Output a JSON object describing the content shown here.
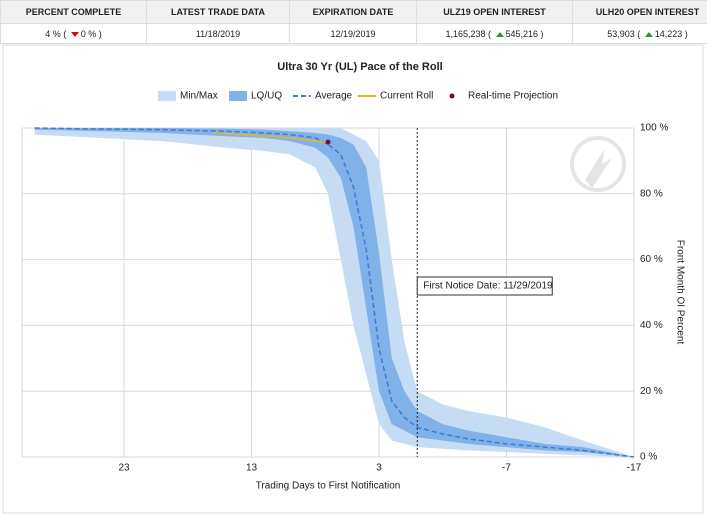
{
  "table": {
    "headers": [
      "PERCENT COMPLETE",
      "LATEST TRADE DATA",
      "EXPIRATION DATE",
      "ULZ19 OPEN INTEREST",
      "ULH20 OPEN INTEREST"
    ],
    "rows": [
      [
        {
          "value": "4 %",
          "change": "0 %",
          "direction": "down"
        },
        "11/18/2019",
        "12/19/2019",
        {
          "value": "1,165,238",
          "change": "545,216",
          "direction": "up"
        },
        {
          "value": "53,903",
          "change": "14,223",
          "direction": "up"
        }
      ]
    ]
  },
  "chart_data": {
    "type": "line",
    "title": "Ultra 30 Yr (UL) Pace of the Roll",
    "x_label": "Trading Days to First Notification",
    "y_label": "Front Month OI Percent",
    "x": [
      30,
      25,
      20,
      15,
      12,
      10,
      8,
      7,
      6,
      5,
      4,
      3,
      2,
      1,
      0,
      -2,
      -4,
      -7,
      -10,
      -13,
      -17
    ],
    "series": [
      {
        "name": "Min/Max",
        "type": "band",
        "color": "#c6dcf4",
        "high": [
          100,
          100,
          100,
          100,
          100,
          100,
          100,
          100,
          100,
          98,
          96,
          90,
          60,
          35,
          20,
          16,
          14,
          12,
          9,
          5,
          0
        ],
        "low": [
          98,
          97,
          96,
          94,
          93,
          92,
          88,
          80,
          60,
          40,
          25,
          10,
          5,
          4,
          3,
          2.5,
          2,
          1.5,
          1,
          0.5,
          0
        ]
      },
      {
        "name": "LQ/UQ",
        "type": "band",
        "color": "#80b1e8",
        "high": [
          100,
          100,
          100,
          99.8,
          99.5,
          99,
          98.5,
          98,
          97,
          95,
          88,
          62,
          30,
          20,
          14,
          10,
          8,
          6,
          4,
          3,
          0
        ],
        "low": [
          99.5,
          99,
          98.5,
          97.5,
          97,
          96,
          94,
          91,
          85,
          70,
          45,
          20,
          10,
          8,
          6,
          5,
          4,
          3,
          2,
          1.5,
          0
        ]
      },
      {
        "name": "Average",
        "type": "line",
        "color": "#3b7bd4",
        "dashed": true,
        "values": [
          100,
          99.7,
          99.5,
          99,
          98.5,
          98,
          97,
          95,
          92,
          82,
          63,
          33,
          17,
          12,
          9,
          7,
          5.5,
          4,
          3,
          2,
          0
        ]
      },
      {
        "name": "Current Roll",
        "type": "line",
        "color": "#e5b81e",
        "dashed": false,
        "x": [
          16,
          14,
          12,
          10,
          8,
          7
        ],
        "values": [
          98.5,
          98,
          97.5,
          97,
          96,
          95.5
        ]
      },
      {
        "name": "Real-time Projection",
        "type": "point",
        "color": "#6d1040",
        "x": [
          7
        ],
        "values": [
          95.7
        ]
      }
    ],
    "xlim": [
      31,
      -17
    ],
    "xticks": [
      23,
      13,
      3,
      -7,
      -17
    ],
    "ylim": [
      0,
      100
    ],
    "yticks": [
      {
        "value": 0,
        "label": "0 %"
      },
      {
        "value": 20,
        "label": "20 %"
      },
      {
        "value": 40,
        "label": "40 %"
      },
      {
        "value": 60,
        "label": "60 %"
      },
      {
        "value": 80,
        "label": "80 %"
      },
      {
        "value": 100,
        "label": "100 %"
      }
    ],
    "grid": true,
    "annotation": {
      "x": 0,
      "text": "First Notice Date: 11/29/2019"
    }
  }
}
